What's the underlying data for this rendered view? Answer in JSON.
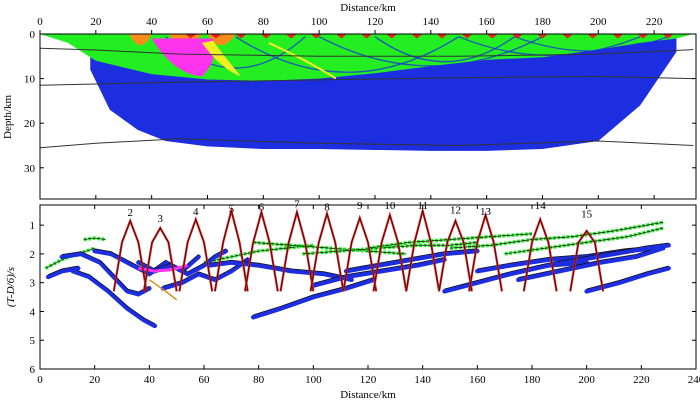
{
  "chart_data": [
    {
      "type": "area",
      "xlabel": "Distance/km",
      "ylabel": "Depth/km",
      "xlim": [
        0,
        235
      ],
      "ylim": [
        0,
        37
      ],
      "x_ticks": [
        "0",
        "20",
        "40",
        "60",
        "80",
        "100",
        "120",
        "140",
        "160",
        "180",
        "200",
        "220"
      ],
      "y_ticks": [
        "0",
        "10",
        "20",
        "30"
      ],
      "colors": {
        "deep": "#1c2ee0",
        "mid": "#22ee22",
        "shallow": "#ff8c1a",
        "top": "#e61f1f",
        "pink": "#ff33ee",
        "yellow": "#f0f020",
        "boundary": "#333333"
      },
      "ray_envelope": {
        "x": [
          18,
          25,
          35,
          45,
          60,
          80,
          100,
          120,
          140,
          160,
          180,
          200,
          215,
          228
        ],
        "depth": [
          8,
          17,
          21.5,
          24,
          25.2,
          25.8,
          25.8,
          26,
          26.2,
          26.2,
          25.8,
          24,
          16,
          4
        ]
      },
      "mid_layer_base": {
        "x": [
          0,
          10,
          20,
          40,
          60,
          80,
          100,
          120,
          140,
          160,
          180,
          200,
          215,
          228,
          234
        ],
        "depth": [
          0,
          2,
          6,
          9,
          10.2,
          10.5,
          10,
          8.8,
          7.2,
          5.8,
          5.2,
          3.5,
          2,
          1,
          0
        ]
      },
      "boundaries": [
        {
          "x": [
            0,
            20,
            50,
            100,
            150,
            200,
            234
          ],
          "depth": [
            3.2,
            3.6,
            4.5,
            5,
            5,
            4.5,
            3.5
          ]
        },
        {
          "x": [
            0,
            20,
            50,
            100,
            150,
            200,
            234
          ],
          "depth": [
            11.5,
            11.2,
            10.8,
            10.3,
            9.8,
            9.5,
            10
          ]
        },
        {
          "x": [
            0,
            20,
            50,
            100,
            150,
            200,
            234
          ],
          "depth": [
            25.5,
            24.5,
            23.5,
            24.5,
            25,
            24,
            25
          ]
        }
      ]
    },
    {
      "type": "scatter",
      "xlabel": "Distance/km",
      "ylabel": "(T-D/6)/s",
      "xlim": [
        0,
        240
      ],
      "ylim": [
        0.3,
        6
      ],
      "x_ticks": [
        "0",
        "20",
        "40",
        "60",
        "80",
        "100",
        "120",
        "140",
        "160",
        "180",
        "200",
        "220",
        "240"
      ],
      "y_ticks": [
        "1",
        "2",
        "3",
        "4",
        "5",
        "6"
      ],
      "shot_labels": [
        "2",
        "3",
        "4",
        "5",
        "6",
        "7",
        "8",
        "9",
        "10",
        "11",
        "12",
        "13",
        "14",
        "15"
      ],
      "shot_x": [
        33,
        44,
        57,
        70,
        81,
        94,
        105,
        117,
        128,
        140,
        152,
        163,
        183,
        200
      ],
      "shot_t": [
        0.85,
        1.1,
        0.8,
        0.5,
        0.55,
        0.55,
        0.6,
        0.75,
        0.65,
        0.5,
        0.85,
        0.65,
        0.8,
        1.2
      ],
      "shot_label_t": [
        0.55,
        0.75,
        0.5,
        0.4,
        0.35,
        0.25,
        0.35,
        0.3,
        0.3,
        0.3,
        0.45,
        0.5,
        0.3,
        0.6
      ],
      "blue_series": [
        {
          "x": [
            8,
            15,
            22,
            28,
            32,
            36,
            40
          ],
          "t": [
            2.1,
            2.0,
            2.3,
            2.9,
            3.3,
            3.4,
            3.2
          ]
        },
        {
          "x": [
            12,
            18,
            25,
            32,
            38,
            42
          ],
          "t": [
            2.6,
            2.8,
            3.3,
            3.9,
            4.3,
            4.5
          ]
        },
        {
          "x": [
            20,
            26,
            32,
            40,
            46,
            52,
            58
          ],
          "t": [
            1.9,
            2.0,
            2.3,
            2.7,
            2.3,
            2.6,
            2.1
          ]
        },
        {
          "x": [
            36,
            42,
            48,
            54,
            60,
            64,
            68
          ],
          "t": [
            2.3,
            2.6,
            2.4,
            2.7,
            2.4,
            2.1,
            1.9
          ]
        },
        {
          "x": [
            45,
            52,
            58,
            64,
            70,
            76
          ],
          "t": [
            3.2,
            3.0,
            2.7,
            2.9,
            2.6,
            2.2
          ]
        },
        {
          "x": [
            62,
            70,
            80,
            92,
            104,
            114
          ],
          "t": [
            2.4,
            2.3,
            2.4,
            2.6,
            2.7,
            2.9
          ]
        },
        {
          "x": [
            78,
            88,
            100,
            112,
            122
          ],
          "t": [
            4.2,
            3.9,
            3.5,
            3.2,
            2.9
          ]
        },
        {
          "x": [
            100,
            112,
            125,
            138,
            148
          ],
          "t": [
            3.1,
            2.8,
            2.6,
            2.4,
            2.2
          ]
        },
        {
          "x": [
            112,
            124,
            136,
            148,
            160
          ],
          "t": [
            2.6,
            2.4,
            2.2,
            2.0,
            1.9
          ]
        },
        {
          "x": [
            148,
            160,
            172,
            186,
            200
          ],
          "t": [
            3.3,
            3.0,
            2.7,
            2.4,
            2.3
          ]
        },
        {
          "x": [
            160,
            172,
            186,
            200,
            214,
            226
          ],
          "t": [
            2.6,
            2.4,
            2.2,
            2.1,
            1.9,
            1.8
          ]
        },
        {
          "x": [
            175,
            190,
            205,
            218,
            228
          ],
          "t": [
            2.9,
            2.6,
            2.3,
            2.1,
            1.8
          ]
        },
        {
          "x": [
            186,
            198,
            210,
            222,
            230
          ],
          "t": [
            2.4,
            2.2,
            2.0,
            1.8,
            1.7
          ]
        },
        {
          "x": [
            200,
            212,
            222,
            230
          ],
          "t": [
            3.3,
            3.0,
            2.7,
            2.5
          ]
        },
        {
          "x": [
            3,
            8,
            14
          ],
          "t": [
            2.8,
            2.6,
            2.5
          ]
        }
      ],
      "green_series": [
        {
          "x": [
            2,
            8,
            14,
            20
          ],
          "t": [
            2.5,
            2.2,
            2.0,
            1.8
          ]
        },
        {
          "x": [
            16,
            20,
            24
          ],
          "t": [
            1.5,
            1.45,
            1.5
          ]
        },
        {
          "x": [
            60,
            70,
            80,
            90,
            100
          ],
          "t": [
            2.3,
            2.1,
            1.9,
            1.8,
            1.7
          ]
        },
        {
          "x": [
            78,
            92,
            106,
            120,
            134
          ],
          "t": [
            1.6,
            1.7,
            1.8,
            1.9,
            2.0
          ]
        },
        {
          "x": [
            96,
            110,
            124,
            138,
            150,
            160
          ],
          "t": [
            2.0,
            1.9,
            1.8,
            1.7,
            1.7,
            1.6
          ]
        },
        {
          "x": [
            120,
            135,
            150,
            165,
            180
          ],
          "t": [
            1.8,
            1.6,
            1.5,
            1.4,
            1.3
          ]
        },
        {
          "x": [
            150,
            165,
            180,
            195,
            210,
            228
          ],
          "t": [
            1.8,
            1.7,
            1.5,
            1.4,
            1.2,
            0.9
          ]
        },
        {
          "x": [
            170,
            185,
            200,
            215,
            228
          ],
          "t": [
            2.0,
            1.8,
            1.6,
            1.4,
            1.1
          ]
        }
      ],
      "colors": {
        "blue": "#1c2ee0",
        "green": "#22ee22",
        "red": "#e61f1f",
        "black": "#111111",
        "pink": "#ff33ee",
        "orange": "#d98c1a"
      }
    }
  ]
}
